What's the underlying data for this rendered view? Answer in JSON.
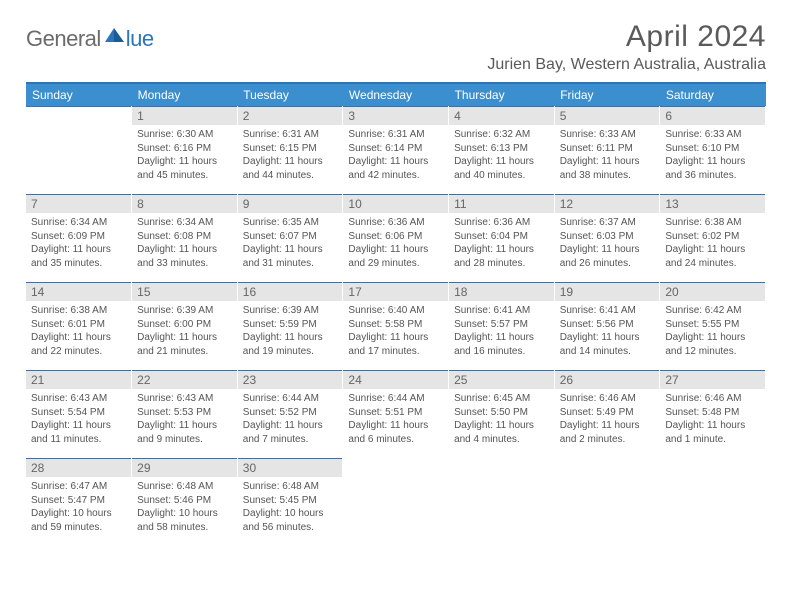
{
  "logo": {
    "text1": "General",
    "text2": "lue"
  },
  "title": "April 2024",
  "location": "Jurien Bay, Western Australia, Australia",
  "colors": {
    "header_bg": "#3b8fcf",
    "header_border": "#2d75b8",
    "daynum_bg": "#e5e5e5",
    "text": "#555555",
    "logo_gray": "#6b6b6b",
    "logo_blue": "#2d75b8"
  },
  "dayHeaders": [
    "Sunday",
    "Monday",
    "Tuesday",
    "Wednesday",
    "Thursday",
    "Friday",
    "Saturday"
  ],
  "weeks": [
    [
      {
        "empty": true
      },
      {
        "num": "1",
        "sunrise": "6:30 AM",
        "sunset": "6:16 PM",
        "daylight": "11 hours and 45 minutes."
      },
      {
        "num": "2",
        "sunrise": "6:31 AM",
        "sunset": "6:15 PM",
        "daylight": "11 hours and 44 minutes."
      },
      {
        "num": "3",
        "sunrise": "6:31 AM",
        "sunset": "6:14 PM",
        "daylight": "11 hours and 42 minutes."
      },
      {
        "num": "4",
        "sunrise": "6:32 AM",
        "sunset": "6:13 PM",
        "daylight": "11 hours and 40 minutes."
      },
      {
        "num": "5",
        "sunrise": "6:33 AM",
        "sunset": "6:11 PM",
        "daylight": "11 hours and 38 minutes."
      },
      {
        "num": "6",
        "sunrise": "6:33 AM",
        "sunset": "6:10 PM",
        "daylight": "11 hours and 36 minutes."
      }
    ],
    [
      {
        "num": "7",
        "sunrise": "6:34 AM",
        "sunset": "6:09 PM",
        "daylight": "11 hours and 35 minutes."
      },
      {
        "num": "8",
        "sunrise": "6:34 AM",
        "sunset": "6:08 PM",
        "daylight": "11 hours and 33 minutes."
      },
      {
        "num": "9",
        "sunrise": "6:35 AM",
        "sunset": "6:07 PM",
        "daylight": "11 hours and 31 minutes."
      },
      {
        "num": "10",
        "sunrise": "6:36 AM",
        "sunset": "6:06 PM",
        "daylight": "11 hours and 29 minutes."
      },
      {
        "num": "11",
        "sunrise": "6:36 AM",
        "sunset": "6:04 PM",
        "daylight": "11 hours and 28 minutes."
      },
      {
        "num": "12",
        "sunrise": "6:37 AM",
        "sunset": "6:03 PM",
        "daylight": "11 hours and 26 minutes."
      },
      {
        "num": "13",
        "sunrise": "6:38 AM",
        "sunset": "6:02 PM",
        "daylight": "11 hours and 24 minutes."
      }
    ],
    [
      {
        "num": "14",
        "sunrise": "6:38 AM",
        "sunset": "6:01 PM",
        "daylight": "11 hours and 22 minutes."
      },
      {
        "num": "15",
        "sunrise": "6:39 AM",
        "sunset": "6:00 PM",
        "daylight": "11 hours and 21 minutes."
      },
      {
        "num": "16",
        "sunrise": "6:39 AM",
        "sunset": "5:59 PM",
        "daylight": "11 hours and 19 minutes."
      },
      {
        "num": "17",
        "sunrise": "6:40 AM",
        "sunset": "5:58 PM",
        "daylight": "11 hours and 17 minutes."
      },
      {
        "num": "18",
        "sunrise": "6:41 AM",
        "sunset": "5:57 PM",
        "daylight": "11 hours and 16 minutes."
      },
      {
        "num": "19",
        "sunrise": "6:41 AM",
        "sunset": "5:56 PM",
        "daylight": "11 hours and 14 minutes."
      },
      {
        "num": "20",
        "sunrise": "6:42 AM",
        "sunset": "5:55 PM",
        "daylight": "11 hours and 12 minutes."
      }
    ],
    [
      {
        "num": "21",
        "sunrise": "6:43 AM",
        "sunset": "5:54 PM",
        "daylight": "11 hours and 11 minutes."
      },
      {
        "num": "22",
        "sunrise": "6:43 AM",
        "sunset": "5:53 PM",
        "daylight": "11 hours and 9 minutes."
      },
      {
        "num": "23",
        "sunrise": "6:44 AM",
        "sunset": "5:52 PM",
        "daylight": "11 hours and 7 minutes."
      },
      {
        "num": "24",
        "sunrise": "6:44 AM",
        "sunset": "5:51 PM",
        "daylight": "11 hours and 6 minutes."
      },
      {
        "num": "25",
        "sunrise": "6:45 AM",
        "sunset": "5:50 PM",
        "daylight": "11 hours and 4 minutes."
      },
      {
        "num": "26",
        "sunrise": "6:46 AM",
        "sunset": "5:49 PM",
        "daylight": "11 hours and 2 minutes."
      },
      {
        "num": "27",
        "sunrise": "6:46 AM",
        "sunset": "5:48 PM",
        "daylight": "11 hours and 1 minute."
      }
    ],
    [
      {
        "num": "28",
        "sunrise": "6:47 AM",
        "sunset": "5:47 PM",
        "daylight": "10 hours and 59 minutes."
      },
      {
        "num": "29",
        "sunrise": "6:48 AM",
        "sunset": "5:46 PM",
        "daylight": "10 hours and 58 minutes."
      },
      {
        "num": "30",
        "sunrise": "6:48 AM",
        "sunset": "5:45 PM",
        "daylight": "10 hours and 56 minutes."
      },
      {
        "emptyTail": true
      },
      {
        "emptyTail": true
      },
      {
        "emptyTail": true
      },
      {
        "emptyTail": true
      }
    ]
  ],
  "labels": {
    "sunrise": "Sunrise: ",
    "sunset": "Sunset: ",
    "daylight": "Daylight: "
  }
}
